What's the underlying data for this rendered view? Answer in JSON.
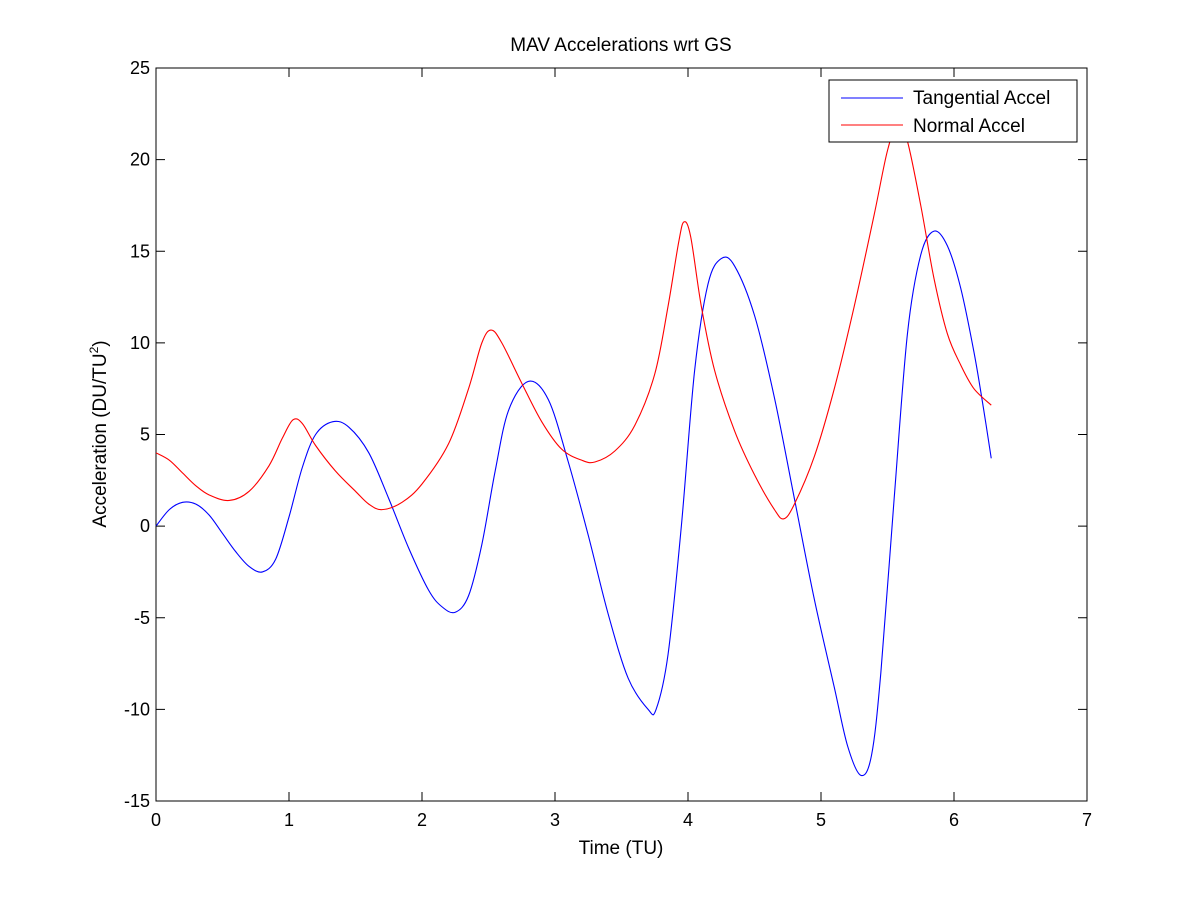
{
  "chart_data": {
    "type": "line",
    "title": "MAV Accelerations wrt GS",
    "xlabel": "Time (TU)",
    "ylabel": {
      "main": "Acceleration (DU/TU",
      "superscript": "2",
      "close": ")"
    },
    "xlim": [
      0,
      7
    ],
    "ylim": [
      -15,
      25
    ],
    "xticks": [
      0,
      1,
      2,
      3,
      4,
      5,
      6,
      7
    ],
    "yticks": [
      -15,
      -10,
      -5,
      0,
      5,
      10,
      15,
      20,
      25
    ],
    "grid": false,
    "legend_position": "top-right",
    "series": [
      {
        "name": "Tangential Accel",
        "color": "#0000ff",
        "points": [
          [
            0.0,
            0.0
          ],
          [
            0.1,
            0.9
          ],
          [
            0.2,
            1.3
          ],
          [
            0.3,
            1.2
          ],
          [
            0.4,
            0.6
          ],
          [
            0.5,
            -0.4
          ],
          [
            0.6,
            -1.4
          ],
          [
            0.7,
            -2.2
          ],
          [
            0.8,
            -2.5
          ],
          [
            0.9,
            -1.8
          ],
          [
            1.0,
            0.5
          ],
          [
            1.1,
            3.2
          ],
          [
            1.2,
            5.0
          ],
          [
            1.33,
            5.7
          ],
          [
            1.45,
            5.4
          ],
          [
            1.6,
            4.0
          ],
          [
            1.75,
            1.5
          ],
          [
            1.9,
            -1.2
          ],
          [
            2.05,
            -3.5
          ],
          [
            2.15,
            -4.4
          ],
          [
            2.25,
            -4.7
          ],
          [
            2.35,
            -3.8
          ],
          [
            2.45,
            -1.0
          ],
          [
            2.55,
            3.0
          ],
          [
            2.65,
            6.3
          ],
          [
            2.8,
            7.9
          ],
          [
            2.95,
            6.9
          ],
          [
            3.1,
            3.5
          ],
          [
            3.25,
            -0.5
          ],
          [
            3.4,
            -4.8
          ],
          [
            3.55,
            -8.3
          ],
          [
            3.7,
            -10.0
          ],
          [
            3.76,
            -10.0
          ],
          [
            3.85,
            -7.0
          ],
          [
            3.95,
            0.0
          ],
          [
            4.05,
            8.5
          ],
          [
            4.15,
            13.2
          ],
          [
            4.25,
            14.6
          ],
          [
            4.35,
            14.2
          ],
          [
            4.5,
            11.5
          ],
          [
            4.65,
            7.0
          ],
          [
            4.8,
            1.5
          ],
          [
            4.95,
            -4.0
          ],
          [
            5.1,
            -8.8
          ],
          [
            5.2,
            -12.0
          ],
          [
            5.3,
            -13.6
          ],
          [
            5.38,
            -12.5
          ],
          [
            5.45,
            -8.0
          ],
          [
            5.55,
            1.5
          ],
          [
            5.65,
            10.5
          ],
          [
            5.75,
            14.8
          ],
          [
            5.85,
            16.1
          ],
          [
            5.95,
            15.3
          ],
          [
            6.05,
            13.0
          ],
          [
            6.15,
            9.5
          ],
          [
            6.22,
            6.5
          ],
          [
            6.28,
            3.7
          ]
        ]
      },
      {
        "name": "Normal Accel",
        "color": "#ff0000",
        "points": [
          [
            0.0,
            4.0
          ],
          [
            0.1,
            3.6
          ],
          [
            0.2,
            2.9
          ],
          [
            0.3,
            2.2
          ],
          [
            0.4,
            1.7
          ],
          [
            0.55,
            1.4
          ],
          [
            0.7,
            1.9
          ],
          [
            0.85,
            3.3
          ],
          [
            0.95,
            4.8
          ],
          [
            1.03,
            5.8
          ],
          [
            1.1,
            5.6
          ],
          [
            1.2,
            4.4
          ],
          [
            1.35,
            3.0
          ],
          [
            1.5,
            1.9
          ],
          [
            1.6,
            1.2
          ],
          [
            1.7,
            0.9
          ],
          [
            1.85,
            1.3
          ],
          [
            2.0,
            2.3
          ],
          [
            2.2,
            4.5
          ],
          [
            2.35,
            7.5
          ],
          [
            2.45,
            10.0
          ],
          [
            2.52,
            10.7
          ],
          [
            2.6,
            10.0
          ],
          [
            2.75,
            7.8
          ],
          [
            2.9,
            5.7
          ],
          [
            3.05,
            4.2
          ],
          [
            3.2,
            3.6
          ],
          [
            3.3,
            3.5
          ],
          [
            3.45,
            4.1
          ],
          [
            3.6,
            5.5
          ],
          [
            3.75,
            8.3
          ],
          [
            3.85,
            12.0
          ],
          [
            3.93,
            15.5
          ],
          [
            3.97,
            16.6
          ],
          [
            4.02,
            15.8
          ],
          [
            4.1,
            12.0
          ],
          [
            4.2,
            8.5
          ],
          [
            4.35,
            5.2
          ],
          [
            4.5,
            2.8
          ],
          [
            4.65,
            0.9
          ],
          [
            4.72,
            0.4
          ],
          [
            4.8,
            1.2
          ],
          [
            4.95,
            3.8
          ],
          [
            5.1,
            7.5
          ],
          [
            5.25,
            12.0
          ],
          [
            5.4,
            17.0
          ],
          [
            5.5,
            20.5
          ],
          [
            5.58,
            22.0
          ],
          [
            5.65,
            21.0
          ],
          [
            5.75,
            17.5
          ],
          [
            5.85,
            13.5
          ],
          [
            5.95,
            10.5
          ],
          [
            6.05,
            8.8
          ],
          [
            6.15,
            7.5
          ],
          [
            6.28,
            6.6
          ]
        ]
      }
    ]
  }
}
